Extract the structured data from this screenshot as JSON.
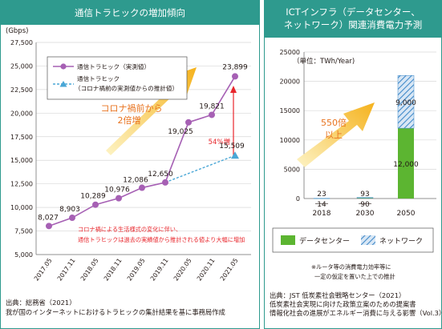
{
  "left": {
    "title": "通信トラヒックの増加傾向",
    "source_line1": "出典：総務省（2021）",
    "source_line2": "我が国のインターネットにおけるトラヒックの集計結果を基に事務局作成"
  },
  "right": {
    "title_line1": "ICTインフラ（データセンター、",
    "title_line2": "ネットワーク）関連消費電力予測",
    "note_line1": "※ルータ等の消費電力効率等に",
    "note_line2": "一定の仮定を置いた上での推計",
    "source_line1": "出典：JST 低炭素社会戦略センター（2021）",
    "source_line2": "低炭素社会実現に向けた政策立案のための提案書",
    "source_line3": "情報化社会の進展がエネルギー消費に与える影響（Vol.3）"
  },
  "colors": {
    "title_bar": "#2e9a8e",
    "actual_line": "#a660b4",
    "estimate_line": "#4aa7d6",
    "callout": "#e8262c",
    "arrow": "#f6b625",
    "datacenter": "#5cb531",
    "network": "#3f89c9"
  },
  "chart_data": [
    {
      "type": "line",
      "ylabel": "(Gbps)",
      "ylim": [
        5000,
        27500
      ],
      "yticks": [
        "5,000",
        "7,500",
        "10,000",
        "12,500",
        "15,000",
        "17,500",
        "20,000",
        "22,500",
        "25,000",
        "27,500"
      ],
      "categories": [
        "2017.05",
        "2017.11",
        "2018.05",
        "2018.11",
        "2019.05",
        "2019.11",
        "2020.05",
        "2020.11",
        "2021.05"
      ],
      "series": [
        {
          "name": "通信トラヒック（実測値）",
          "values": [
            8027,
            8903,
            10289,
            10976,
            12086,
            12650,
            19025,
            19821,
            23899
          ],
          "labels": [
            "8,027",
            "8,903",
            "10,289",
            "10,976",
            "12,086",
            "12,650",
            "19,025",
            "19,821",
            "23,899"
          ]
        },
        {
          "name_line1": "通信トラヒック",
          "name_line2": "（コロナ禍前の実測値からの推計値）",
          "x": [
            "2019.11",
            "2021.05"
          ],
          "values": [
            12650,
            15509
          ],
          "labels": [
            "",
            "15,509"
          ]
        }
      ],
      "annotations": {
        "growth_line1": "コロナ禍前から",
        "growth_line2": "2倍増",
        "increase": "54%増",
        "covid_note_line1": "コロナ禍による生活様式の変化に伴い、",
        "covid_note_line2": "通信トラヒックは過去の実績値から推計される値より大幅に増加"
      }
    },
    {
      "type": "bar",
      "stacked": true,
      "ylabel": "（単位：TWh/Year)",
      "ylim": [
        0,
        25000
      ],
      "yticks": [
        "0",
        "5000",
        "10000",
        "15000",
        "20000",
        "25000"
      ],
      "categories": [
        "2018",
        "2030",
        "2050"
      ],
      "series": [
        {
          "name": "データセンター",
          "values": [
            14,
            90,
            12000
          ],
          "labels": [
            "14",
            "90",
            "12,000"
          ]
        },
        {
          "name": "ネットワーク",
          "values": [
            23,
            93,
            9000
          ],
          "labels": [
            "23",
            "93",
            "9,000"
          ]
        }
      ],
      "annotations": {
        "growth_line1": "550倍",
        "growth_line2": "以上"
      }
    }
  ]
}
